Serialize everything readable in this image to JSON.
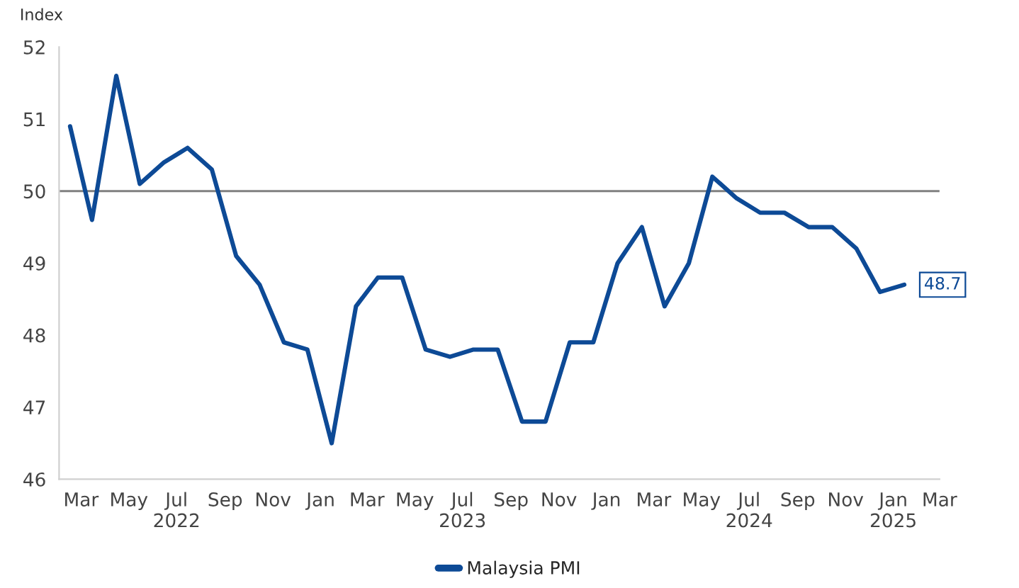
{
  "chart_data": {
    "type": "line",
    "ylabel": "Index",
    "x": [
      "2022-02-15",
      "2022-03-15",
      "2022-04-15",
      "2022-05-15",
      "2022-06-15",
      "2022-07-15",
      "2022-08-15",
      "2022-09-15",
      "2022-10-15",
      "2022-11-15",
      "2022-12-15",
      "2023-01-15",
      "2023-02-15",
      "2023-03-15",
      "2023-04-15",
      "2023-05-15",
      "2023-06-15",
      "2023-07-15",
      "2023-08-15",
      "2023-09-15",
      "2023-10-15",
      "2023-11-15",
      "2023-12-15",
      "2024-01-15",
      "2024-02-15",
      "2024-03-15",
      "2024-04-15",
      "2024-05-15",
      "2024-06-15",
      "2024-07-15",
      "2024-08-15",
      "2024-09-15",
      "2024-10-15",
      "2024-11-15",
      "2024-12-15",
      "2025-01-15"
    ],
    "series": [
      {
        "name": "Malaysia PMI",
        "color": "#0d4a96",
        "values": [
          50.9,
          49.6,
          51.6,
          50.1,
          50.4,
          50.6,
          50.3,
          49.1,
          48.7,
          47.9,
          47.8,
          46.5,
          48.4,
          48.8,
          48.8,
          47.8,
          47.7,
          47.8,
          47.8,
          46.8,
          46.8,
          47.9,
          47.9,
          49.0,
          49.5,
          48.4,
          49.0,
          50.2,
          49.9,
          49.7,
          49.7,
          49.5,
          49.5,
          49.2,
          48.6,
          48.7
        ],
        "value_labels": [
          null,
          null,
          null,
          null,
          null,
          null,
          null,
          null,
          null,
          null,
          null,
          null,
          null,
          null,
          null,
          null,
          null,
          null,
          null,
          null,
          null,
          null,
          null,
          null,
          null,
          null,
          null,
          null,
          null,
          null,
          null,
          null,
          null,
          null,
          null,
          "48.7"
        ]
      }
    ],
    "xlim": [
      "2022-02-01",
      "2025-03-01"
    ],
    "xticks": [
      {
        "value": "2022-03-01",
        "label": "Mar"
      },
      {
        "value": "2022-05-01",
        "label": "May"
      },
      {
        "value": "2022-07-01",
        "label": "Jul\n2022"
      },
      {
        "value": "2022-09-01",
        "label": "Sep"
      },
      {
        "value": "2022-11-01",
        "label": "Nov"
      },
      {
        "value": "2023-01-01",
        "label": "Jan"
      },
      {
        "value": "2023-03-01",
        "label": "Mar"
      },
      {
        "value": "2023-05-01",
        "label": "May"
      },
      {
        "value": "2023-07-01",
        "label": "Jul\n2023"
      },
      {
        "value": "2023-09-01",
        "label": "Sep"
      },
      {
        "value": "2023-11-01",
        "label": "Nov"
      },
      {
        "value": "2024-01-01",
        "label": "Jan"
      },
      {
        "value": "2024-03-01",
        "label": "Mar"
      },
      {
        "value": "2024-05-01",
        "label": "May"
      },
      {
        "value": "2024-07-01",
        "label": "Jul\n2024"
      },
      {
        "value": "2024-09-01",
        "label": "Sep"
      },
      {
        "value": "2024-11-01",
        "label": "Nov"
      },
      {
        "value": "2025-01-01",
        "label": "Jan\n2025"
      },
      {
        "value": "2025-03-01",
        "label": "Mar"
      }
    ],
    "ylim": [
      46,
      52
    ],
    "yticks": [
      46,
      47,
      48,
      49,
      50,
      51,
      52
    ],
    "ref_lines": [
      {
        "axis": "y",
        "value": 50,
        "color": "#808080"
      }
    ],
    "grid": false,
    "legend": "bottom",
    "marker": "none",
    "line_style": "solid"
  }
}
